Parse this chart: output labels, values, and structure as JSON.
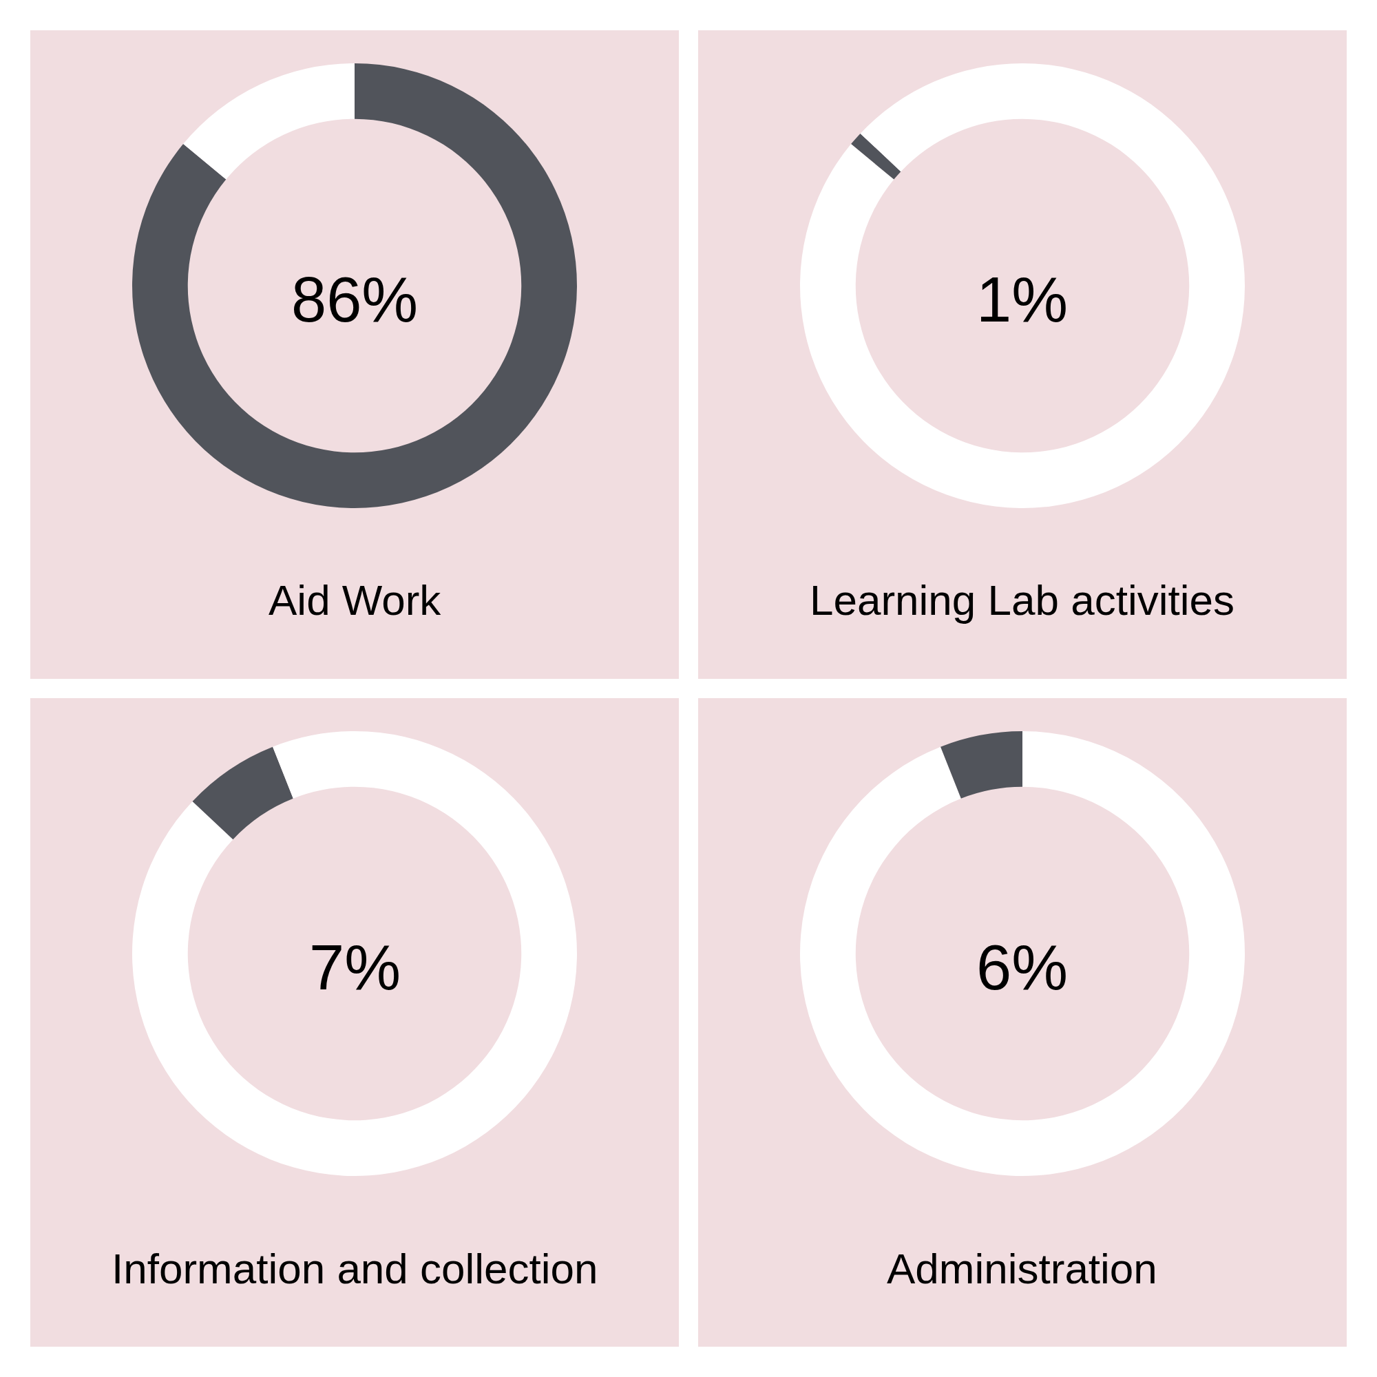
{
  "chart_data": [
    {
      "type": "donut",
      "title": "Aid Work",
      "categories": [
        null,
        null
      ],
      "values": [
        86,
        14
      ],
      "colors": [
        "#51545b",
        "#ffffff"
      ],
      "annotations": [
        "86%"
      ]
    },
    {
      "type": "donut",
      "title": "Learning Lab activities",
      "categories": [
        null,
        null,
        null
      ],
      "values": [
        86,
        1,
        13
      ],
      "colors": [
        "#ffffff",
        "#51545b",
        "#ffffff"
      ],
      "annotations": [
        "1%"
      ]
    },
    {
      "type": "donut",
      "title": "Information and collection",
      "categories": [
        null,
        null,
        null
      ],
      "values": [
        87,
        7,
        6
      ],
      "colors": [
        "#ffffff",
        "#51545b",
        "#ffffff"
      ],
      "annotations": [
        "7%"
      ]
    },
    {
      "type": "donut",
      "title": "Administration",
      "categories": [
        null,
        null
      ],
      "values": [
        94,
        6
      ],
      "colors": [
        "#ffffff",
        "#51545b"
      ],
      "annotations": [
        "6%"
      ]
    }
  ]
}
